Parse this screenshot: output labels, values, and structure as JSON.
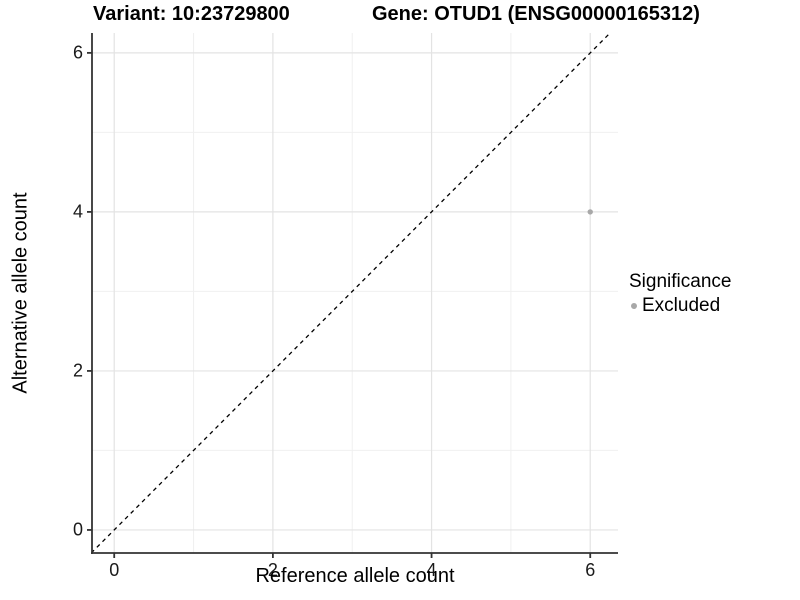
{
  "titles": {
    "variant": "Variant: 10:23729800",
    "gene": "Gene: OTUD1 (ENSG00000165312)"
  },
  "legend": {
    "title": "Significance",
    "items": [
      {
        "label": "Excluded",
        "color": "#a8a8a8"
      }
    ]
  },
  "chart_data": {
    "type": "scatter",
    "title": "",
    "xlabel": "Reference allele count",
    "ylabel": "Alternative allele count",
    "xlim": [
      -0.28,
      6.35
    ],
    "ylim": [
      -0.29,
      6.25
    ],
    "x_ticks": [
      0,
      2,
      4,
      6
    ],
    "y_ticks": [
      0,
      2,
      4,
      6
    ],
    "x_minor_ticks": [
      1,
      3,
      5
    ],
    "y_minor_ticks": [
      1,
      3,
      5
    ],
    "grid": true,
    "legend_position": "right",
    "reference_line": {
      "type": "identity y=x",
      "style": "dashed",
      "color": "#000000"
    },
    "series": [
      {
        "name": "Excluded",
        "color": "#a8a8a8",
        "points": [
          {
            "x": 6,
            "y": 4
          }
        ]
      }
    ]
  },
  "colors": {
    "grid_major": "#e3e3e3",
    "grid_minor": "#f0f0f0",
    "axis_line": "#333333",
    "tick_text": "#1a1a1a",
    "point": "#a8a8a8"
  }
}
